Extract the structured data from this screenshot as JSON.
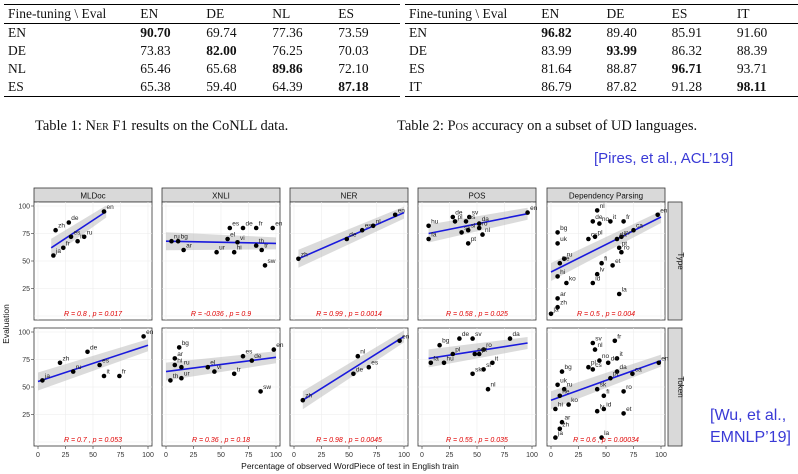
{
  "table1": {
    "headers": [
      "Fine-tuning \\ Eval",
      "EN",
      "DE",
      "NL",
      "ES"
    ],
    "rows": [
      [
        "EN",
        "90.70",
        "69.74",
        "77.36",
        "73.59"
      ],
      [
        "DE",
        "73.83",
        "82.00",
        "76.25",
        "70.03"
      ],
      [
        "NL",
        "65.46",
        "65.68",
        "89.86",
        "72.10"
      ],
      [
        "ES",
        "65.38",
        "59.40",
        "64.39",
        "87.18"
      ]
    ],
    "bold": [
      [
        0,
        1
      ],
      [
        1,
        2
      ],
      [
        2,
        3
      ],
      [
        3,
        4
      ]
    ],
    "caption_prefix": "Table 1: ",
    "caption_sc": "Ner",
    "caption_rest": " F1 results on the CoNLL data."
  },
  "table2": {
    "headers": [
      "Fine-tuning \\ Eval",
      "EN",
      "DE",
      "ES",
      "IT"
    ],
    "rows": [
      [
        "EN",
        "96.82",
        "89.40",
        "85.91",
        "91.60"
      ],
      [
        "DE",
        "83.99",
        "93.99",
        "86.32",
        "88.39"
      ],
      [
        "ES",
        "81.64",
        "88.87",
        "96.71",
        "93.71"
      ],
      [
        "IT",
        "86.79",
        "87.82",
        "91.28",
        "98.11"
      ]
    ],
    "bold": [
      [
        0,
        1
      ],
      [
        1,
        2
      ],
      [
        2,
        3
      ],
      [
        3,
        4
      ]
    ],
    "caption_prefix": "Table 2: ",
    "caption_sc": "Pos",
    "caption_rest": " accuracy on a subset of UD languages."
  },
  "citations": {
    "pires": "[Pires, et al., ACL’19]",
    "wu_line1": "[Wu, et al.,",
    "wu_line2": "EMNLP’19]"
  },
  "chart_data": {
    "type": "scatter",
    "xlabel": "Percentage of observed WordPiece of test in English train",
    "ylabel": "Evaluation",
    "xlim": [
      0,
      100
    ],
    "ylim": [
      0,
      100
    ],
    "xticks": [
      "0",
      "25",
      "50",
      "75",
      "100"
    ],
    "yticks": [
      "25",
      "50",
      "75",
      "100"
    ],
    "columns": [
      "MLDoc",
      "XNLI",
      "NER",
      "POS",
      "Dependency Parsing"
    ],
    "rows": [
      "Type",
      "Token"
    ],
    "panels": [
      {
        "col": 0,
        "row": 0,
        "stat": "R = 0.8 , p = 0.017",
        "fit": [
          [
            12,
            62
          ],
          [
            62,
            95
          ]
        ],
        "points": [
          [
            "en",
            60,
            95
          ],
          [
            "de",
            28,
            85
          ],
          [
            "zh",
            16,
            78
          ],
          [
            "ru",
            42,
            72
          ],
          [
            "es",
            30,
            72
          ],
          [
            "it",
            36,
            68
          ],
          [
            "fr",
            23,
            62
          ],
          [
            "ja",
            14,
            55
          ]
        ]
      },
      {
        "col": 1,
        "row": 0,
        "stat": "R = -0.036 , p = 0.9",
        "fit": [
          [
            0,
            68
          ],
          [
            100,
            66
          ]
        ],
        "points": [
          [
            "ru",
            5,
            68
          ],
          [
            "bg",
            11,
            68
          ],
          [
            "ar",
            16,
            60
          ],
          [
            "es",
            58,
            80
          ],
          [
            "de",
            70,
            80
          ],
          [
            "fr",
            82,
            80
          ],
          [
            "en",
            97,
            80
          ],
          [
            "el",
            56,
            70
          ],
          [
            "vi",
            65,
            67
          ],
          [
            "ur",
            46,
            58
          ],
          [
            "hi",
            62,
            58
          ],
          [
            "th",
            82,
            64
          ],
          [
            "tr",
            87,
            60
          ],
          [
            "sw",
            90,
            46
          ]
        ]
      },
      {
        "col": 2,
        "row": 0,
        "stat": "R = 0.99 , p = 0.0014",
        "fit": [
          [
            4,
            52
          ],
          [
            100,
            94
          ]
        ],
        "points": [
          [
            "zh",
            4,
            52
          ],
          [
            "de",
            48,
            70
          ],
          [
            "es",
            62,
            78
          ],
          [
            "nl",
            72,
            82
          ],
          [
            "en",
            92,
            92
          ]
        ]
      },
      {
        "col": 3,
        "row": 0,
        "stat": "R = 0.58 , p = 0.025",
        "fit": [
          [
            6,
            75
          ],
          [
            96,
            93
          ]
        ],
        "points": [
          [
            "de",
            28,
            90
          ],
          [
            "sv",
            43,
            90
          ],
          [
            "hu",
            6,
            82
          ],
          [
            "fa",
            6,
            70
          ],
          [
            "pl",
            30,
            86
          ],
          [
            "es",
            40,
            86
          ],
          [
            "pt",
            42,
            66
          ],
          [
            "da",
            52,
            84
          ],
          [
            "sk",
            36,
            76
          ],
          [
            "sl",
            42,
            78
          ],
          [
            "ro",
            52,
            80
          ],
          [
            "nl",
            55,
            74
          ],
          [
            "en",
            96,
            94
          ]
        ]
      },
      {
        "col": 4,
        "row": 0,
        "stat": "R = 0.5 , p = 0.004",
        "fit": [
          [
            0,
            40
          ],
          [
            100,
            90
          ]
        ],
        "points": [
          [
            "nl",
            42,
            96
          ],
          [
            "de",
            38,
            86
          ],
          [
            "no",
            44,
            84
          ],
          [
            "it",
            54,
            86
          ],
          [
            "fr",
            66,
            86
          ],
          [
            "en",
            97,
            92
          ],
          [
            "bg",
            6,
            76
          ],
          [
            "uk",
            6,
            66
          ],
          [
            "ca",
            75,
            78
          ],
          [
            "cs",
            34,
            70
          ],
          [
            "pl",
            40,
            72
          ],
          [
            "sv",
            64,
            72
          ],
          [
            "da",
            60,
            70
          ],
          [
            "pt",
            62,
            62
          ],
          [
            "ro",
            64,
            58
          ],
          [
            "ru",
            12,
            52
          ],
          [
            "he",
            8,
            48
          ],
          [
            "fi",
            46,
            48
          ],
          [
            "et",
            56,
            46
          ],
          [
            "hi",
            6,
            36
          ],
          [
            "ko",
            14,
            30
          ],
          [
            "lv",
            42,
            38
          ],
          [
            "id",
            38,
            30
          ],
          [
            "ar",
            6,
            16
          ],
          [
            "zh",
            6,
            8
          ],
          [
            "la",
            62,
            20
          ],
          [
            "ja",
            0,
            2
          ]
        ]
      },
      {
        "col": 0,
        "row": 1,
        "stat": "R = 0.7 , p = 0.053",
        "fit": [
          [
            0,
            55
          ],
          [
            100,
            88
          ]
        ],
        "points": [
          [
            "en",
            96,
            96
          ],
          [
            "de",
            45,
            82
          ],
          [
            "zh",
            20,
            72
          ],
          [
            "es",
            56,
            70
          ],
          [
            "ru",
            32,
            64
          ],
          [
            "it",
            60,
            60
          ],
          [
            "fr",
            74,
            60
          ],
          [
            "ja",
            4,
            56
          ]
        ]
      },
      {
        "col": 1,
        "row": 1,
        "stat": "R = 0.36 , p = 0.18",
        "fit": [
          [
            0,
            64
          ],
          [
            100,
            77
          ]
        ],
        "points": [
          [
            "bg",
            12,
            86
          ],
          [
            "ar",
            8,
            76
          ],
          [
            "hi",
            8,
            70
          ],
          [
            "ru",
            14,
            68
          ],
          [
            "th",
            4,
            56
          ],
          [
            "ur",
            14,
            58
          ],
          [
            "el",
            38,
            68
          ],
          [
            "vi",
            44,
            64
          ],
          [
            "es",
            70,
            78
          ],
          [
            "de",
            78,
            74
          ],
          [
            "tr",
            62,
            62
          ],
          [
            "sw",
            86,
            46
          ],
          [
            "en",
            98,
            84
          ]
        ]
      },
      {
        "col": 2,
        "row": 1,
        "stat": "R = 0.98 , p = 0.0045",
        "fit": [
          [
            8,
            38
          ],
          [
            100,
            96
          ]
        ],
        "points": [
          [
            "zh",
            8,
            38
          ],
          [
            "nl",
            58,
            78
          ],
          [
            "de",
            54,
            62
          ],
          [
            "es",
            68,
            68
          ],
          [
            "en",
            96,
            92
          ]
        ]
      },
      {
        "col": 3,
        "row": 1,
        "stat": "R = 0.55 , p = 0.035",
        "fit": [
          [
            6,
            76
          ],
          [
            96,
            90
          ]
        ],
        "points": [
          [
            "bg",
            16,
            88
          ],
          [
            "de",
            34,
            94
          ],
          [
            "sv",
            46,
            94
          ],
          [
            "da",
            80,
            94
          ],
          [
            "fa",
            8,
            72
          ],
          [
            "hu",
            20,
            72
          ],
          [
            "pl",
            28,
            80
          ],
          [
            "ro",
            56,
            84
          ],
          [
            "es",
            48,
            80
          ],
          [
            "it",
            64,
            72
          ],
          [
            "pt",
            52,
            80
          ],
          [
            "sk",
            46,
            62
          ],
          [
            "sl",
            56,
            66
          ],
          [
            "nl",
            60,
            48
          ]
        ]
      },
      {
        "col": 4,
        "row": 1,
        "stat": "R = 0.6 , p = 0.00034",
        "fit": [
          [
            0,
            38
          ],
          [
            100,
            74
          ]
        ],
        "points": [
          [
            "sv",
            38,
            90
          ],
          [
            "nl",
            40,
            84
          ],
          [
            "fr",
            58,
            92
          ],
          [
            "bg",
            10,
            64
          ],
          [
            "pl",
            34,
            68
          ],
          [
            "no",
            44,
            74
          ],
          [
            "it",
            60,
            76
          ],
          [
            "de",
            52,
            72
          ],
          [
            "cs",
            38,
            66
          ],
          [
            "uk",
            6,
            52
          ],
          [
            "ru",
            12,
            48
          ],
          [
            "da",
            60,
            64
          ],
          [
            "pt",
            54,
            58
          ],
          [
            "ca",
            74,
            62
          ],
          [
            "he",
            8,
            42
          ],
          [
            "sk",
            42,
            48
          ],
          [
            "ro",
            66,
            46
          ],
          [
            "fi",
            48,
            42
          ],
          [
            "en",
            98,
            72
          ],
          [
            "hi",
            4,
            30
          ],
          [
            "ko",
            16,
            34
          ],
          [
            "id",
            48,
            30
          ],
          [
            "lv",
            42,
            28
          ],
          [
            "ar",
            10,
            18
          ],
          [
            "zh",
            8,
            12
          ],
          [
            "et",
            66,
            26
          ],
          [
            "ja",
            4,
            4
          ],
          [
            "la",
            46,
            4
          ]
        ]
      }
    ]
  },
  "colors": {
    "fit": "#1a1add",
    "point": "#000000",
    "stat": "#e00000",
    "strip": "#d9d9d9",
    "band": "#bdbdbd",
    "cite": "#3a3ad6"
  }
}
